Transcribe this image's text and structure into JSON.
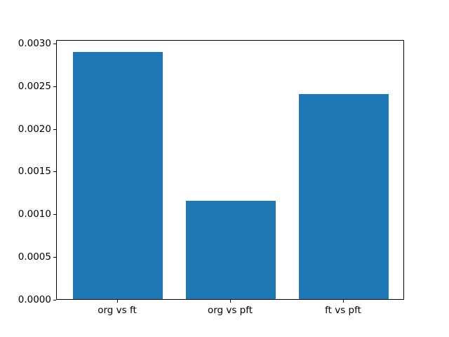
{
  "chart_data": {
    "type": "bar",
    "title": "",
    "xlabel": "",
    "ylabel": "",
    "categories": [
      "org vs ft",
      "org vs pft",
      "ft vs pft"
    ],
    "values": [
      0.0029,
      0.00115,
      0.0024
    ],
    "bar_positions": [
      0,
      1,
      2
    ],
    "bar_width_units": 0.8,
    "xlim": [
      -0.54,
      2.54
    ],
    "ylim": [
      0,
      0.003045
    ],
    "yticks": [
      0.0,
      0.0005,
      0.001,
      0.0015,
      0.002,
      0.0025,
      0.003
    ],
    "ytick_labels": [
      "0.0000",
      "0.0005",
      "0.0010",
      "0.0015",
      "0.0020",
      "0.0025",
      "0.0030"
    ],
    "grid": false,
    "legend_position": "none",
    "bar_color": "#1f77b4",
    "axis_color": "#000000",
    "background_color": "#ffffff"
  }
}
